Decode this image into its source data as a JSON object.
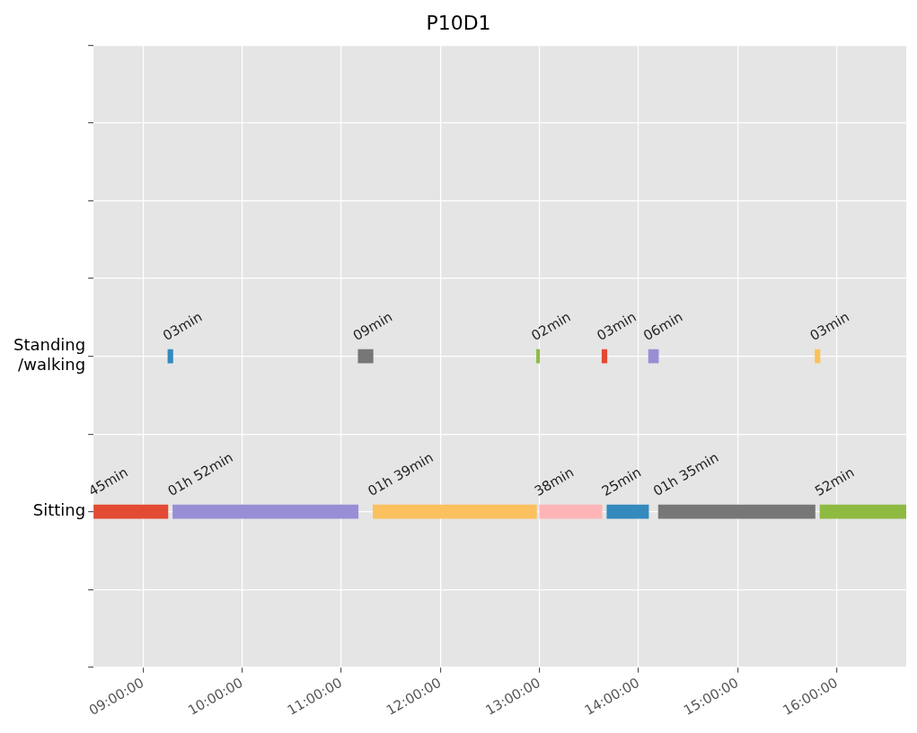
{
  "chart_data": {
    "type": "bar",
    "orientation": "horizontal",
    "title": "P10D1",
    "categories": [
      null,
      null,
      null,
      null,
      "Standing\n/walking",
      null,
      "Sitting",
      null,
      null
    ],
    "xlim": [
      8.5,
      16.7
    ],
    "xticks": [
      {
        "value": 9,
        "label": "09:00:00"
      },
      {
        "value": 10,
        "label": "10:00:00"
      },
      {
        "value": 11,
        "label": "11:00:00"
      },
      {
        "value": 12,
        "label": "12:00:00"
      },
      {
        "value": 13,
        "label": "13:00:00"
      },
      {
        "value": 14,
        "label": "14:00:00"
      },
      {
        "value": 15,
        "label": "15:00:00"
      },
      {
        "value": 16,
        "label": "16:00:00"
      }
    ],
    "grid": true,
    "legend": false,
    "series": [
      {
        "color": "#e24a33",
        "values": [
          null,
          null,
          null,
          null,
          null,
          null,
          0.75,
          null,
          null
        ],
        "base": [
          null,
          null,
          null,
          null,
          null,
          null,
          8.5,
          null,
          null
        ]
      },
      {
        "color": "#348abd",
        "values": [
          null,
          null,
          null,
          null,
          0.05,
          null,
          null,
          null,
          null
        ],
        "base": [
          null,
          null,
          null,
          null,
          9.25,
          null,
          null,
          null,
          null
        ]
      },
      {
        "color": "#988ed5",
        "values": [
          null,
          null,
          null,
          null,
          null,
          null,
          1.87,
          null,
          null
        ],
        "base": [
          null,
          null,
          null,
          null,
          null,
          null,
          9.3,
          null,
          null
        ]
      },
      {
        "color": "#777777",
        "values": [
          null,
          null,
          null,
          null,
          0.15,
          null,
          null,
          null,
          null
        ],
        "base": [
          null,
          null,
          null,
          null,
          11.17,
          null,
          null,
          null,
          null
        ]
      },
      {
        "color": "#fbc15e",
        "values": [
          null,
          null,
          null,
          null,
          null,
          null,
          1.65,
          null,
          null
        ],
        "base": [
          null,
          null,
          null,
          null,
          null,
          null,
          11.32,
          null,
          null
        ]
      },
      {
        "color": "#8eba42",
        "values": [
          null,
          null,
          null,
          null,
          0.03,
          null,
          null,
          null,
          null
        ],
        "base": [
          null,
          null,
          null,
          null,
          12.97,
          null,
          null,
          null,
          null
        ]
      },
      {
        "color": "#ffb5b8",
        "values": [
          null,
          null,
          null,
          null,
          null,
          null,
          0.63,
          null,
          null
        ],
        "base": [
          null,
          null,
          null,
          null,
          null,
          null,
          13.0,
          null,
          null
        ]
      },
      {
        "color": "#e24a33",
        "values": [
          null,
          null,
          null,
          null,
          0.05,
          null,
          null,
          null,
          null
        ],
        "base": [
          null,
          null,
          null,
          null,
          13.63,
          null,
          null,
          null,
          null
        ]
      },
      {
        "color": "#348abd",
        "values": [
          null,
          null,
          null,
          null,
          null,
          null,
          0.42,
          null,
          null
        ],
        "base": [
          null,
          null,
          null,
          null,
          null,
          null,
          13.68,
          null,
          null
        ]
      },
      {
        "color": "#988ed5",
        "values": [
          null,
          null,
          null,
          null,
          0.1,
          null,
          null,
          null,
          null
        ],
        "base": [
          null,
          null,
          null,
          null,
          14.1,
          null,
          null,
          null,
          null
        ]
      },
      {
        "color": "#777777",
        "values": [
          null,
          null,
          null,
          null,
          null,
          null,
          1.58,
          null,
          null
        ],
        "base": [
          null,
          null,
          null,
          null,
          null,
          null,
          14.2,
          null,
          null
        ]
      },
      {
        "color": "#fbc15e",
        "values": [
          null,
          null,
          null,
          null,
          0.05,
          null,
          null,
          null,
          null
        ],
        "base": [
          null,
          null,
          null,
          null,
          15.78,
          null,
          null,
          null,
          null
        ]
      },
      {
        "color": "#8eba42",
        "values": [
          null,
          null,
          null,
          null,
          null,
          null,
          0.87,
          null,
          null
        ],
        "base": [
          null,
          null,
          null,
          null,
          null,
          null,
          15.83,
          null,
          null
        ]
      }
    ],
    "annotations": [
      {
        "text": "45min",
        "x": 8.5,
        "y": "Sitting"
      },
      {
        "text": "03min",
        "x": 9.25,
        "y": "Standing\n/walking"
      },
      {
        "text": "01h 52min",
        "x": 9.3,
        "y": "Sitting"
      },
      {
        "text": "09min",
        "x": 11.17,
        "y": "Standing\n/walking"
      },
      {
        "text": "01h 39min",
        "x": 11.32,
        "y": "Sitting"
      },
      {
        "text": "02min",
        "x": 12.97,
        "y": "Standing\n/walking"
      },
      {
        "text": "38min",
        "x": 13.0,
        "y": "Sitting"
      },
      {
        "text": "03min",
        "x": 13.63,
        "y": "Standing\n/walking"
      },
      {
        "text": "25min",
        "x": 13.68,
        "y": "Sitting"
      },
      {
        "text": "06min",
        "x": 14.1,
        "y": "Standing\n/walking"
      },
      {
        "text": "01h 35min",
        "x": 14.2,
        "y": "Sitting"
      },
      {
        "text": "03min",
        "x": 15.78,
        "y": "Standing\n/walking"
      },
      {
        "text": "52min",
        "x": 15.83,
        "y": "Sitting"
      }
    ]
  }
}
